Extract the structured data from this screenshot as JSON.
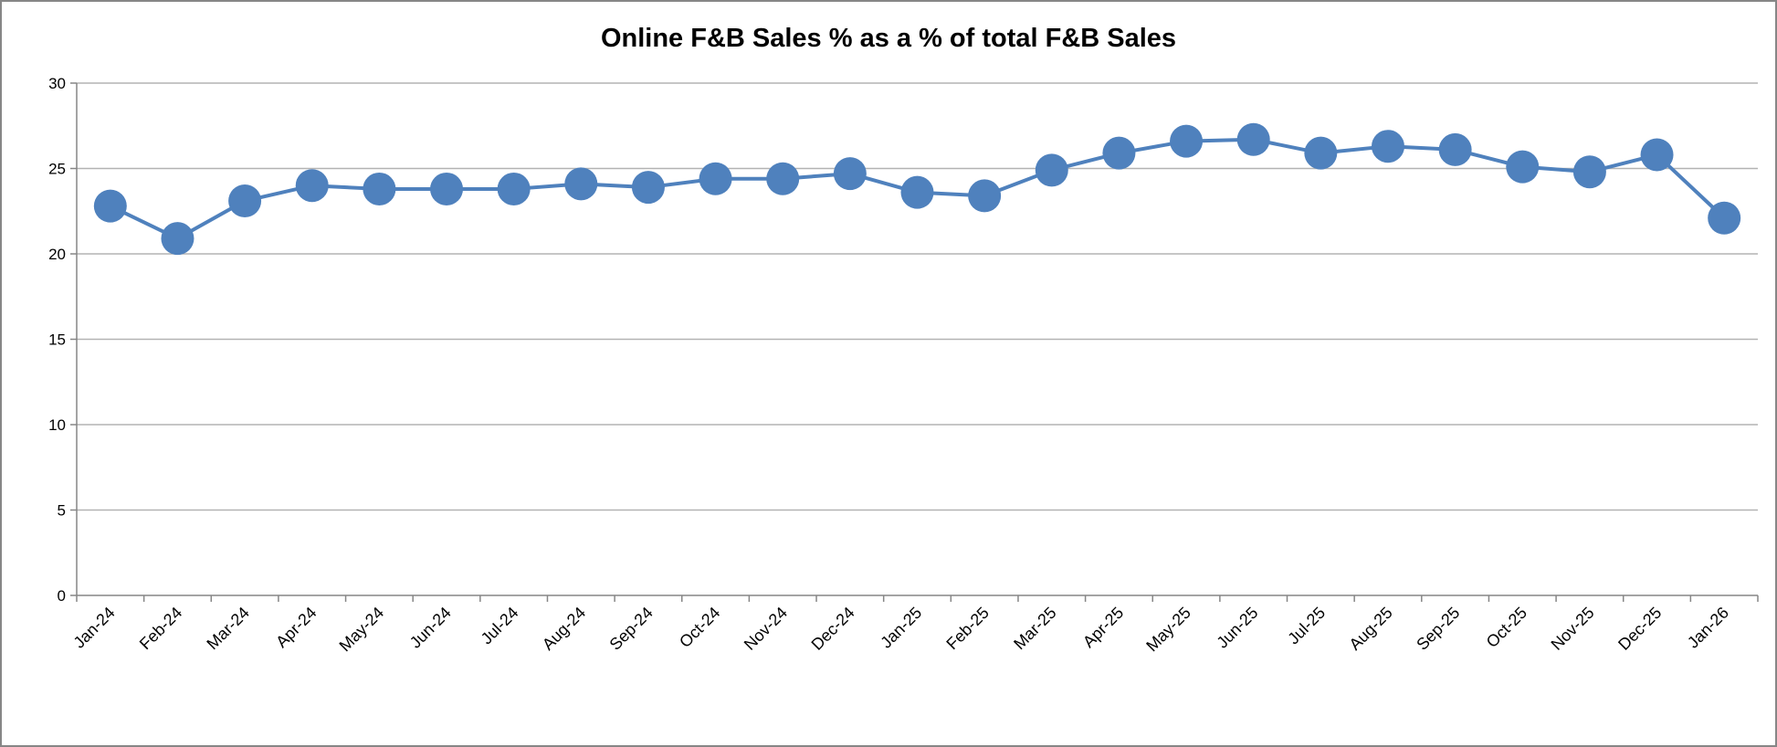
{
  "chart_data": {
    "type": "line",
    "title": "Online F&B Sales % as a % of total F&B Sales",
    "xlabel": "",
    "ylabel": "",
    "ylim": [
      0,
      30
    ],
    "yticks": [
      "0",
      "5",
      "10",
      "15",
      "20",
      "25",
      "30"
    ],
    "grid": true,
    "legend": "none",
    "color": "#4f81bd",
    "categories": [
      "Jan-24",
      "Feb-24",
      "Mar-24",
      "Apr-24",
      "May-24",
      "Jun-24",
      "Jul-24",
      "Aug-24",
      "Sep-24",
      "Oct-24",
      "Nov-24",
      "Dec-24",
      "Jan-25",
      "Feb-25",
      "Mar-25",
      "Apr-25",
      "May-25",
      "Jun-25",
      "Jul-25",
      "Aug-25",
      "Sep-25",
      "Oct-25",
      "Nov-25",
      "Dec-25",
      "Jan-26"
    ],
    "values": [
      22.8,
      20.9,
      23.1,
      24.0,
      23.8,
      23.8,
      23.8,
      24.1,
      23.9,
      24.4,
      24.4,
      24.7,
      23.6,
      23.4,
      24.9,
      25.9,
      26.6,
      26.7,
      25.9,
      26.3,
      26.1,
      25.1,
      24.8,
      25.8,
      22.1
    ]
  }
}
